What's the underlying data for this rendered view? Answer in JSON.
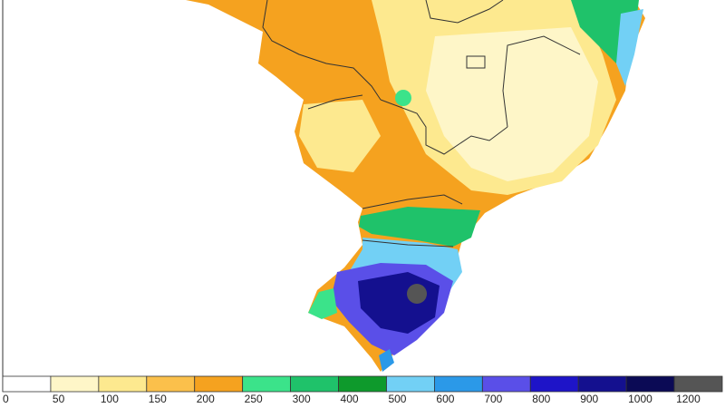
{
  "colorbar": {
    "ticks": [
      0,
      50,
      100,
      150,
      200,
      250,
      300,
      400,
      500,
      600,
      700,
      800,
      900,
      1000,
      1200
    ],
    "colors": [
      "#ffffff",
      "#fef6c8",
      "#fde98f",
      "#fbc04b",
      "#f5a21f",
      "#3be38a",
      "#1fc26a",
      "#0e9a2c",
      "#72d0f5",
      "#2b99e8",
      "#5a4fe8",
      "#1e14c8",
      "#14108f",
      "#0b0a55",
      "#555555"
    ]
  }
}
